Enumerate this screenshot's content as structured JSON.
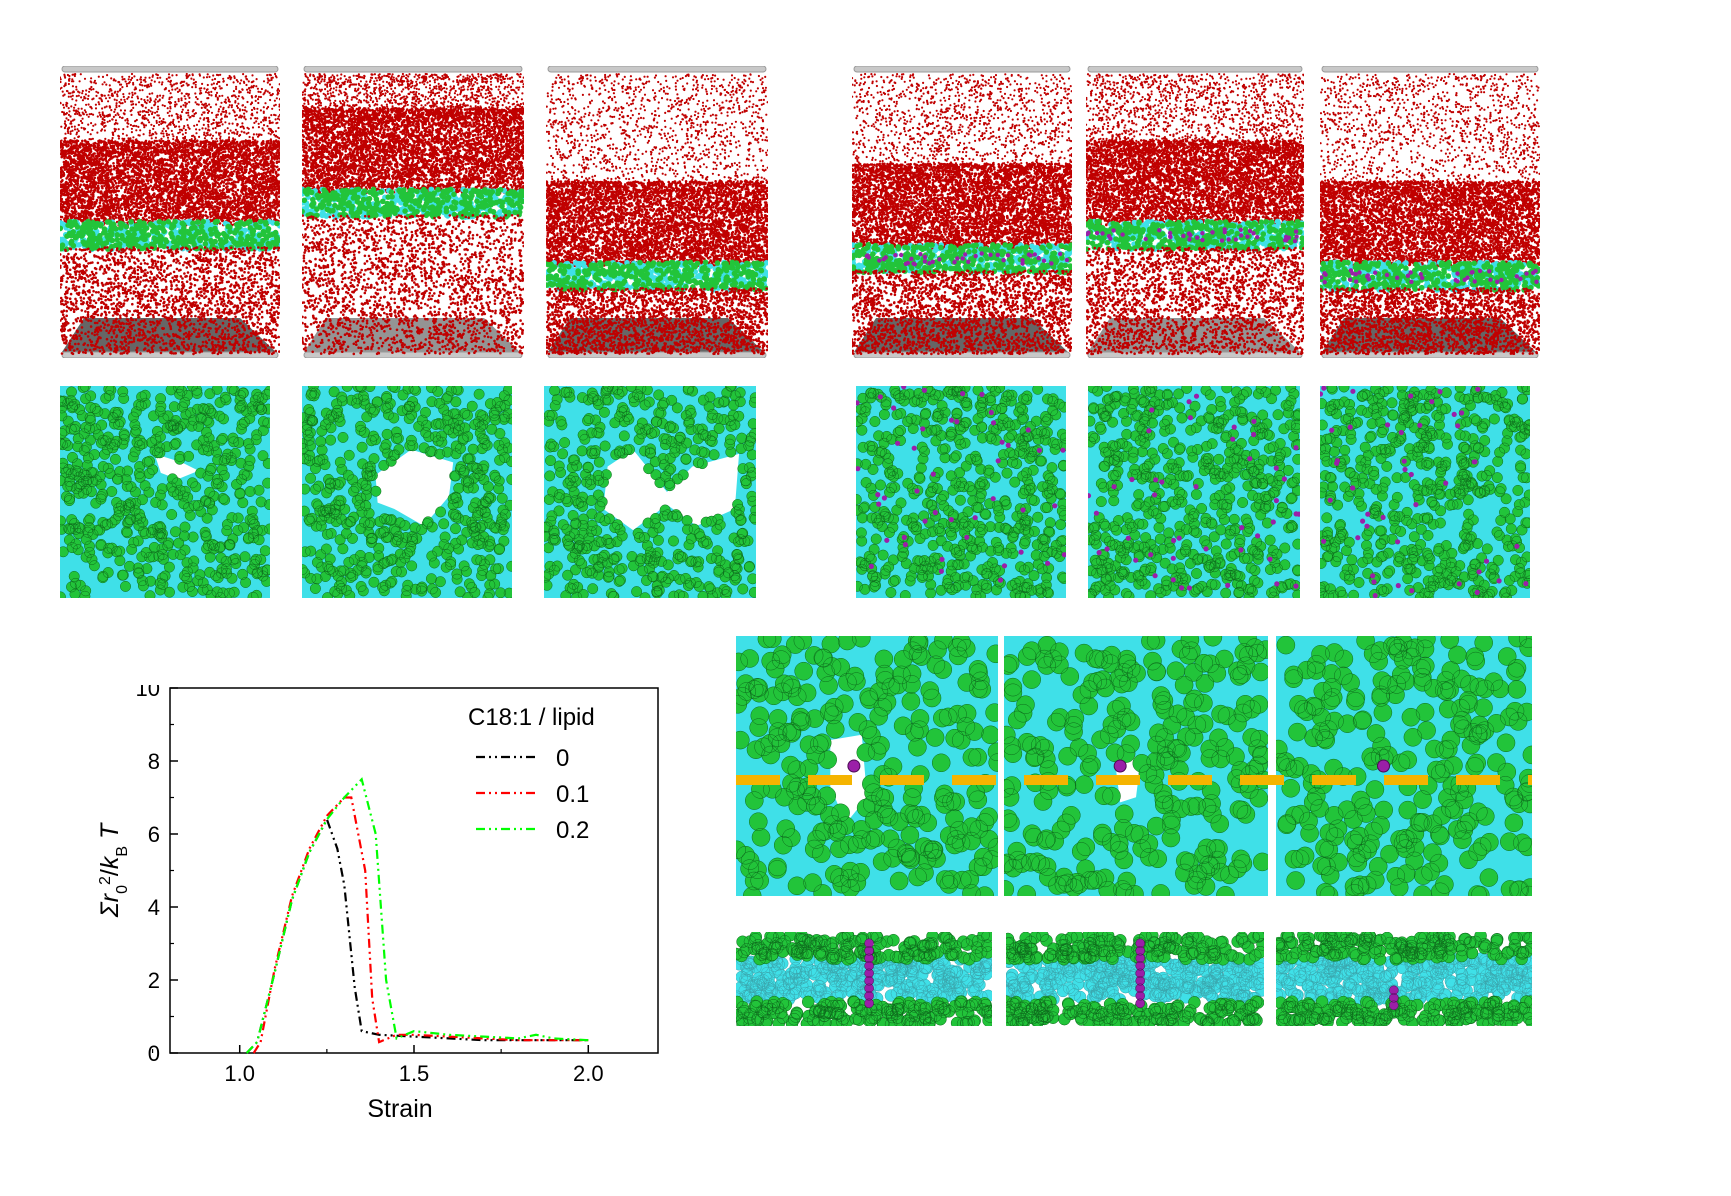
{
  "figure": {
    "top_left_group": [
      "box-0-side",
      "box-0.1-side",
      "box-0.2-side"
    ],
    "top_right_group": [
      "box-a",
      "box-b",
      "box-c"
    ],
    "colors": {
      "water": "#c00000",
      "headgroup": "#22c43a",
      "tail": "#3fe0e8",
      "oleic": "#9b1fa8",
      "wall": "#9a9a9a",
      "floor": "#666666",
      "cut_line": "#f5b400"
    }
  },
  "chart_data": {
    "type": "line",
    "title": "",
    "xlabel": "Strain",
    "ylabel": "Σr0²/kBT",
    "xlim": [
      0.8,
      2.2
    ],
    "ylim": [
      0,
      10
    ],
    "xticks": [
      "1.0",
      "1.5",
      "2.0"
    ],
    "yticks": [
      "0",
      "2",
      "4",
      "6",
      "8",
      "10"
    ],
    "legend_title": "C18:1 / lipid",
    "legend_position": "top-right",
    "series": [
      {
        "name": "0",
        "color": "#000000",
        "x": [
          1.02,
          1.05,
          1.1,
          1.15,
          1.2,
          1.25,
          1.28,
          1.3,
          1.33,
          1.35,
          1.4,
          1.5,
          1.6,
          1.7,
          1.8,
          1.9,
          2.0
        ],
        "y": [
          0.0,
          0.3,
          2.2,
          4.2,
          5.5,
          6.4,
          5.6,
          4.6,
          1.8,
          0.6,
          0.5,
          0.45,
          0.4,
          0.35,
          0.35,
          0.35,
          0.35
        ]
      },
      {
        "name": "0.1",
        "color": "#ff0000",
        "x": [
          1.04,
          1.06,
          1.1,
          1.15,
          1.2,
          1.25,
          1.3,
          1.32,
          1.36,
          1.38,
          1.4,
          1.45,
          1.5,
          1.6,
          1.7,
          1.8,
          1.9,
          2.0
        ],
        "y": [
          0.0,
          0.3,
          2.3,
          4.3,
          5.6,
          6.5,
          7.0,
          7.0,
          5.0,
          1.5,
          0.3,
          0.5,
          0.5,
          0.45,
          0.4,
          0.35,
          0.35,
          0.35
        ]
      },
      {
        "name": "0.2",
        "color": "#00ff00",
        "x": [
          1.02,
          1.05,
          1.1,
          1.15,
          1.2,
          1.25,
          1.3,
          1.35,
          1.39,
          1.42,
          1.45,
          1.5,
          1.6,
          1.7,
          1.8,
          1.85,
          1.9,
          2.0
        ],
        "y": [
          0.0,
          0.3,
          2.2,
          4.2,
          5.5,
          6.4,
          7.0,
          7.5,
          6.0,
          2.0,
          0.4,
          0.6,
          0.5,
          0.45,
          0.4,
          0.5,
          0.4,
          0.35
        ]
      }
    ]
  }
}
